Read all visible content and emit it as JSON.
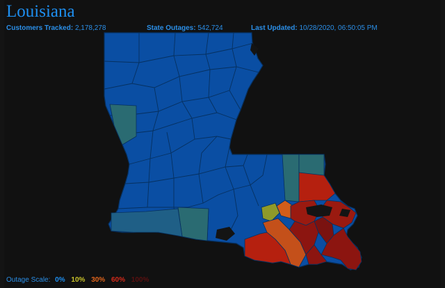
{
  "header": {
    "title": "Louisiana",
    "customers_label": "Customers Tracked:",
    "customers_value": "2,178,278",
    "outages_label": "State Outages:",
    "outages_value": "542,724",
    "updated_label": "Last Updated:",
    "updated_value": "10/28/2020, 06:50:05 PM"
  },
  "scale": {
    "label": "Outage Scale:",
    "ticks": [
      {
        "text": "0%",
        "color": "#1e8ff0"
      },
      {
        "text": "10%",
        "color": "#c9c22a"
      },
      {
        "text": "30%",
        "color": "#e0641c"
      },
      {
        "text": "60%",
        "color": "#d42a1a"
      },
      {
        "text": "100%",
        "color": "#5a1010"
      }
    ]
  },
  "colors": {
    "background": "#111111",
    "accent": "#1e8ff0",
    "parish_base": "#0a4ea3",
    "parish_border": "#06305f",
    "teal": "#2a6b72",
    "olive": "#8f9a2a",
    "orange": "#c4501a",
    "red": "#b5200f",
    "darkred": "#8c1510"
  }
}
